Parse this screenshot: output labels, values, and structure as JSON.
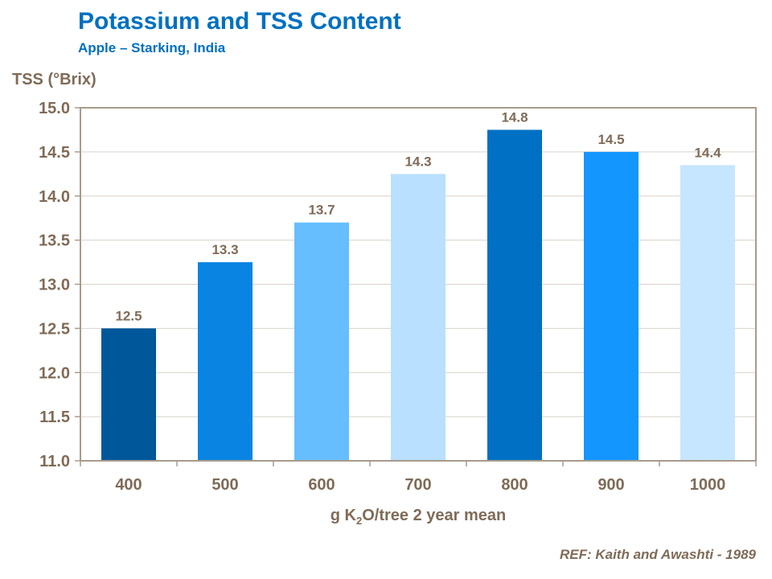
{
  "chart_data": {
    "type": "bar",
    "title": "Potassium and TSS Content",
    "subtitle": "Apple – Starking, India",
    "ylabel": "TSS (°Brix)",
    "xlabel_parts": [
      "g K",
      "2",
      "O/tree 2 year mean"
    ],
    "categories": [
      "400",
      "500",
      "600",
      "700",
      "800",
      "900",
      "1000"
    ],
    "values": [
      12.5,
      13.25,
      13.7,
      14.25,
      14.75,
      14.5,
      14.35
    ],
    "data_labels": [
      "12.5",
      "13.3",
      "13.7",
      "14.3",
      "14.8",
      "14.5",
      "14.4"
    ],
    "colors": [
      "#00579A",
      "#0A84E2",
      "#66BEFF",
      "#B9E0FF",
      "#0070C4",
      "#1496FF",
      "#C6E6FF"
    ],
    "ylim": [
      11.0,
      15.0
    ],
    "yticks": [
      "11.0",
      "11.5",
      "12.0",
      "12.5",
      "13.0",
      "13.5",
      "14.0",
      "14.5",
      "15.0"
    ],
    "grid": true,
    "legend": "none"
  },
  "reference": "REF:  Kaith and Awashti - 1989"
}
